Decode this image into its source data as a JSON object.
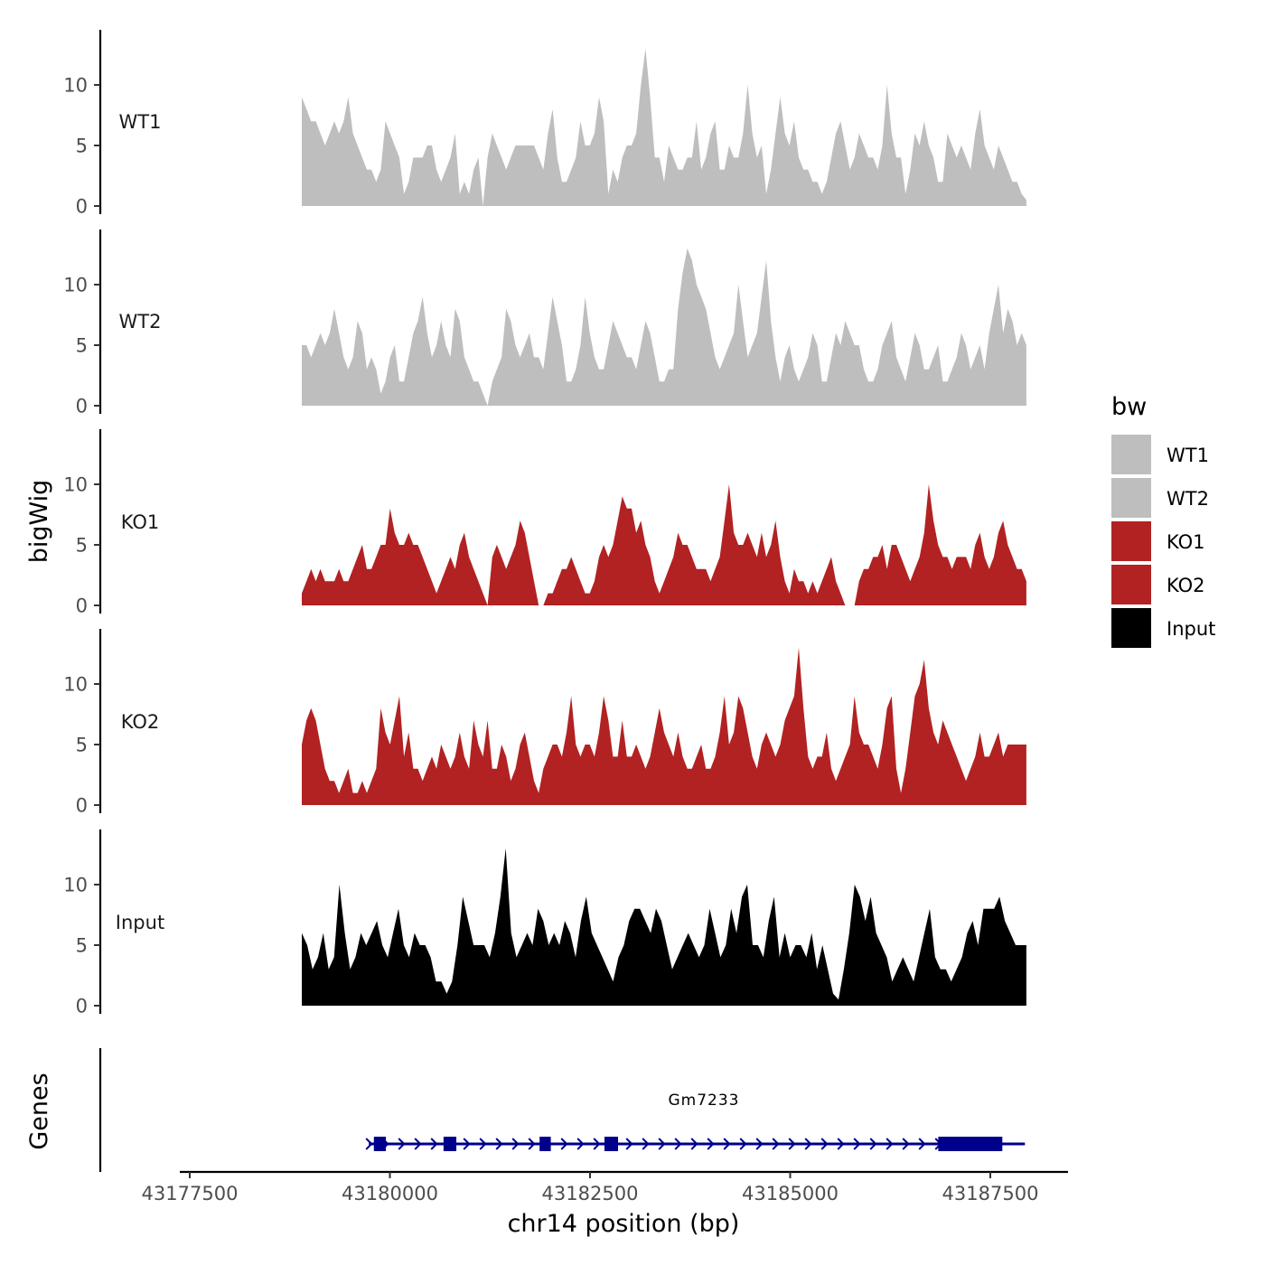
{
  "chart_data": {
    "type": "area",
    "ylabel": "bigWig",
    "xlabel": "chr14 position (bp)",
    "genes_label": "Genes",
    "xlim": [
      43177500,
      43188500
    ],
    "x_data_range": [
      43178900,
      43187950
    ],
    "x_ticks": [
      43177500,
      43180000,
      43182500,
      43185000,
      43187500
    ],
    "x_tick_labels": [
      "43177500",
      "43180000",
      "43182500",
      "43185000",
      "43187500"
    ],
    "ylim": [
      0,
      14.5
    ],
    "y_ticks": [
      0,
      5,
      10
    ],
    "y_tick_labels": [
      "0",
      "5",
      "10"
    ],
    "series_spacing_bp": 100,
    "series": [
      {
        "name": "WT1",
        "color": "#BEBEBE",
        "values": [
          9,
          8,
          7,
          7,
          6,
          5,
          6,
          7,
          6,
          7,
          9,
          6,
          5,
          4,
          3,
          3,
          2,
          3,
          7,
          6,
          5,
          4,
          1,
          2,
          4,
          4,
          4,
          5,
          5,
          3,
          2,
          3,
          4,
          6,
          1,
          2,
          1,
          3,
          4,
          0,
          4,
          6,
          5,
          4,
          3,
          4,
          5,
          5,
          5,
          5,
          5,
          4,
          3,
          6,
          8,
          4,
          2,
          2,
          3,
          4,
          7,
          5,
          5,
          6,
          9,
          7,
          1,
          3,
          2,
          4,
          5,
          5,
          6,
          10,
          13,
          9,
          4,
          4,
          2,
          5,
          4,
          3,
          3,
          4,
          4,
          7,
          3,
          4,
          6,
          7,
          3,
          3,
          5,
          4,
          4,
          6,
          10,
          6,
          4,
          5,
          1,
          3,
          6,
          9,
          6,
          5,
          7,
          4,
          3,
          3,
          2,
          2,
          1,
          2,
          4,
          6,
          7,
          5,
          3,
          4,
          6,
          5,
          4,
          4,
          3,
          5,
          10,
          6,
          4,
          4,
          1,
          3,
          6,
          5,
          7,
          5,
          4,
          2,
          2,
          6,
          5,
          4,
          5,
          4,
          3,
          6,
          8,
          5,
          4,
          3,
          5,
          4,
          3,
          2,
          2,
          1,
          0.5
        ],
        "x_start": 43178900,
        "x_step": 58.5
      },
      {
        "name": "WT2",
        "color": "#BEBEBE",
        "values": [
          5,
          5,
          4,
          5,
          6,
          5,
          6,
          8,
          6,
          4,
          3,
          4,
          7,
          6,
          3,
          4,
          3,
          1,
          2,
          4,
          5,
          2,
          2,
          4,
          6,
          7,
          9,
          6,
          4,
          5,
          7,
          5,
          4,
          8,
          7,
          4,
          3,
          2,
          2,
          1,
          0,
          2,
          3,
          4,
          8,
          7,
          5,
          4,
          5,
          6,
          4,
          4,
          3,
          6,
          9,
          7,
          5,
          2,
          2,
          3,
          5,
          9,
          6,
          4,
          3,
          3,
          5,
          7,
          6,
          5,
          4,
          4,
          3,
          5,
          7,
          6,
          4,
          2,
          2,
          3,
          3,
          8,
          11,
          13,
          12,
          10,
          9,
          8,
          6,
          4,
          3,
          4,
          5,
          6,
          10,
          7,
          4,
          5,
          6,
          9,
          12,
          7,
          4,
          2,
          4,
          5,
          3,
          2,
          3,
          4,
          6,
          5,
          2,
          2,
          4,
          6,
          5,
          7,
          6,
          5,
          5,
          3,
          2,
          2,
          3,
          5,
          6,
          7,
          4,
          3,
          2,
          4,
          6,
          5,
          3,
          3,
          4,
          5,
          2,
          2,
          3,
          4,
          6,
          5,
          3,
          4,
          5,
          3,
          6,
          8,
          10,
          6,
          8,
          7,
          5,
          6,
          5
        ],
        "x_start": 43178900,
        "x_step": 58.1
      },
      {
        "name": "KO1",
        "color": "#B22222",
        "values": [
          1,
          2,
          3,
          2,
          3,
          2,
          2,
          2,
          3,
          2,
          2,
          3,
          4,
          5,
          3,
          3,
          4,
          5,
          5,
          8,
          6,
          5,
          5,
          6,
          5,
          5,
          4,
          3,
          2,
          1,
          2,
          3,
          4,
          3,
          5,
          6,
          4,
          3,
          2,
          1,
          0,
          4,
          5,
          4,
          3,
          4,
          5,
          7,
          6,
          4,
          2,
          0,
          0,
          1,
          1,
          2,
          3,
          3,
          4,
          3,
          2,
          1,
          1,
          2,
          4,
          5,
          4,
          5,
          7,
          9,
          8,
          8,
          6,
          7,
          5,
          4,
          2,
          1,
          2,
          3,
          4,
          6,
          5,
          5,
          4,
          3,
          3,
          3,
          2,
          3,
          4,
          7,
          10,
          6,
          5,
          5,
          6,
          5,
          4,
          6,
          4,
          5,
          7,
          4,
          2,
          1,
          3,
          2,
          2,
          1,
          2,
          1,
          2,
          3,
          4,
          2,
          1,
          0,
          0,
          0,
          2,
          3,
          3,
          4,
          4,
          5,
          3,
          5,
          5,
          4,
          3,
          2,
          3,
          4,
          6,
          10,
          7,
          5,
          4,
          4,
          3,
          4,
          4,
          4,
          3,
          5,
          6,
          4,
          3,
          4,
          6,
          7,
          5,
          4,
          3,
          3,
          2
        ],
        "x_start": 43178900,
        "x_step": 58.0
      },
      {
        "name": "KO2",
        "color": "#B22222",
        "values": [
          5,
          7,
          8,
          7,
          5,
          3,
          2,
          2,
          1,
          2,
          3,
          1,
          1,
          2,
          1,
          2,
          3,
          8,
          6,
          5,
          7,
          9,
          4,
          6,
          3,
          3,
          2,
          3,
          4,
          3,
          5,
          4,
          3,
          4,
          6,
          4,
          3,
          7,
          5,
          4,
          7,
          3,
          3,
          5,
          4,
          2,
          3,
          5,
          6,
          4,
          2,
          1,
          3,
          4,
          5,
          5,
          4,
          6,
          9,
          5,
          4,
          5,
          5,
          4,
          6,
          9,
          7,
          4,
          4,
          7,
          4,
          4,
          5,
          4,
          3,
          4,
          6,
          8,
          6,
          5,
          4,
          6,
          4,
          3,
          3,
          4,
          5,
          3,
          3,
          4,
          6,
          9,
          5,
          6,
          9,
          8,
          6,
          4,
          3,
          5,
          6,
          5,
          4,
          5,
          7,
          8,
          9,
          13,
          8,
          4,
          3,
          4,
          4,
          6,
          3,
          2,
          3,
          4,
          5,
          9,
          6,
          5,
          5,
          4,
          3,
          5,
          8,
          9,
          3,
          1,
          3,
          6,
          9,
          10,
          12,
          8,
          6,
          5,
          7,
          6,
          5,
          4,
          3,
          2,
          3,
          4,
          6,
          4,
          4,
          5,
          6,
          4,
          5,
          5,
          5,
          5,
          5
        ],
        "x_start": 43178900,
        "x_step": 58.1
      },
      {
        "name": "Input",
        "color": "#000000",
        "values": [
          6,
          5,
          3,
          4,
          6,
          3,
          4,
          10,
          6,
          3,
          4,
          6,
          5,
          6,
          7,
          5,
          4,
          6,
          8,
          5,
          4,
          6,
          5,
          5,
          4,
          2,
          2,
          1,
          2,
          5,
          9,
          7,
          5,
          5,
          5,
          4,
          6,
          9,
          13,
          6,
          4,
          5,
          6,
          5,
          8,
          7,
          5,
          6,
          5,
          7,
          6,
          4,
          7,
          9,
          6,
          5,
          4,
          3,
          2,
          4,
          5,
          7,
          8,
          8,
          7,
          6,
          8,
          7,
          5,
          3,
          4,
          5,
          6,
          5,
          4,
          5,
          8,
          6,
          4,
          5,
          8,
          6,
          9,
          10,
          5,
          5,
          4,
          7,
          9,
          4,
          6,
          4,
          5,
          5,
          4,
          6,
          3,
          5,
          3,
          1,
          0.5,
          3,
          6,
          10,
          9,
          7,
          9,
          6,
          5,
          4,
          2,
          3,
          4,
          3,
          2,
          4,
          6,
          8,
          4,
          3,
          3,
          2,
          3,
          4,
          6,
          7,
          5,
          8,
          8,
          8,
          9,
          7,
          6,
          5,
          5,
          5
        ],
        "x_start": 43178900,
        "x_step": 66.5
      }
    ],
    "legend": {
      "title": "bw",
      "entries": [
        {
          "label": "WT1",
          "color": "#BEBEBE"
        },
        {
          "label": "WT2",
          "color": "#BEBEBE"
        },
        {
          "label": "KO1",
          "color": "#B22222"
        },
        {
          "label": "KO2",
          "color": "#B22222"
        },
        {
          "label": "Input",
          "color": "#000000"
        }
      ]
    },
    "gene": {
      "name": "Gm7233",
      "color": "#00008B",
      "start": 43179850,
      "end": 43188000,
      "strand": "+",
      "exons": [
        [
          43179800,
          43179950
        ],
        [
          43180670,
          43180830
        ],
        [
          43181870,
          43182010
        ],
        [
          43182680,
          43182850
        ],
        [
          43186850,
          43187650
        ]
      ]
    }
  }
}
